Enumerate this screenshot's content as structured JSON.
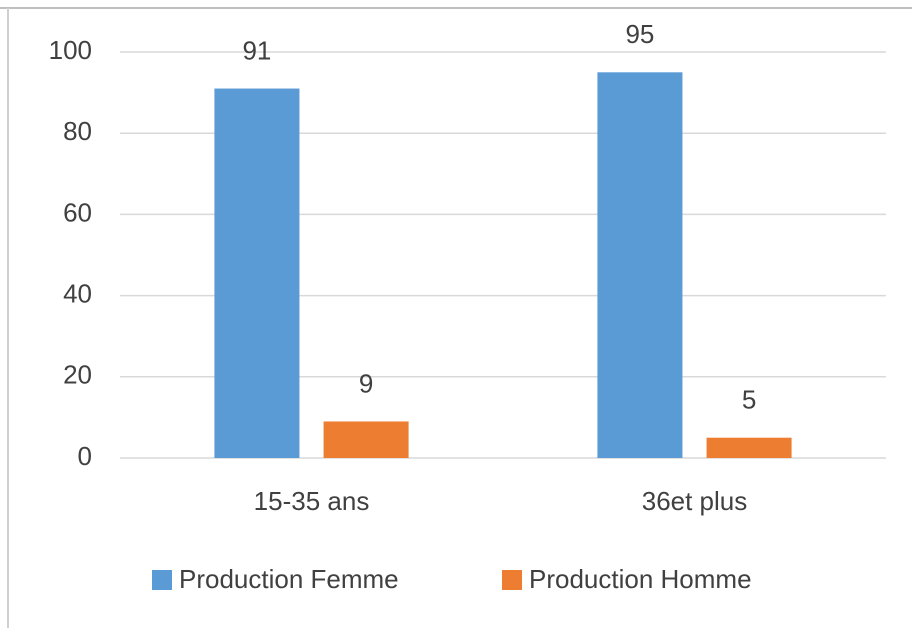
{
  "chart_data": {
    "type": "bar",
    "categories": [
      "15-35 ans",
      "36et plus"
    ],
    "series": [
      {
        "name": "Production Femme",
        "color": "#5b9bd5",
        "values": [
          91,
          95
        ]
      },
      {
        "name": "Production Homme",
        "color": "#ed7d31",
        "values": [
          9,
          5
        ]
      }
    ],
    "ylim": [
      0,
      100
    ],
    "yticks": [
      0,
      20,
      40,
      60,
      80,
      100
    ],
    "grid": true,
    "legend": "bottom"
  }
}
